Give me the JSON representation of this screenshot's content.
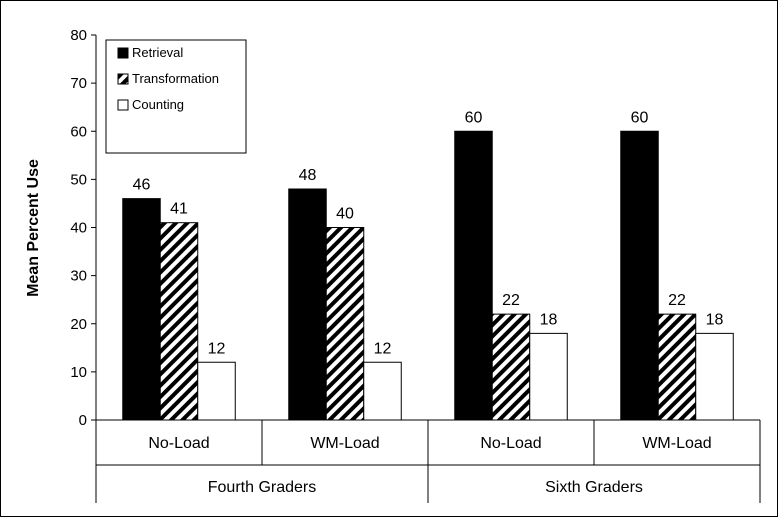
{
  "chart_data": {
    "type": "bar",
    "title": "",
    "xlabel": "",
    "ylabel": "Mean Percent Use",
    "ylim": [
      0,
      80
    ],
    "yticks": [
      0,
      10,
      20,
      30,
      40,
      50,
      60,
      70,
      80
    ],
    "grid": false,
    "legend_position": "top-left",
    "groups": [
      {
        "label": "Fourth Graders",
        "categories": [
          "No-Load",
          "WM-Load"
        ]
      },
      {
        "label": "Sixth Graders",
        "categories": [
          "No-Load",
          "WM-Load"
        ]
      }
    ],
    "categories": [
      "No-Load",
      "WM-Load",
      "No-Load",
      "WM-Load"
    ],
    "series": [
      {
        "name": "Retrieval",
        "pattern": "solid",
        "color": "#000000",
        "values": [
          46,
          48,
          60,
          60
        ]
      },
      {
        "name": "Transformation",
        "pattern": "diagonal-stripes",
        "color": "#000000",
        "values": [
          41,
          40,
          22,
          22
        ]
      },
      {
        "name": "Counting",
        "pattern": "empty",
        "color": "#ffffff",
        "values": [
          12,
          12,
          18,
          18
        ]
      }
    ]
  }
}
